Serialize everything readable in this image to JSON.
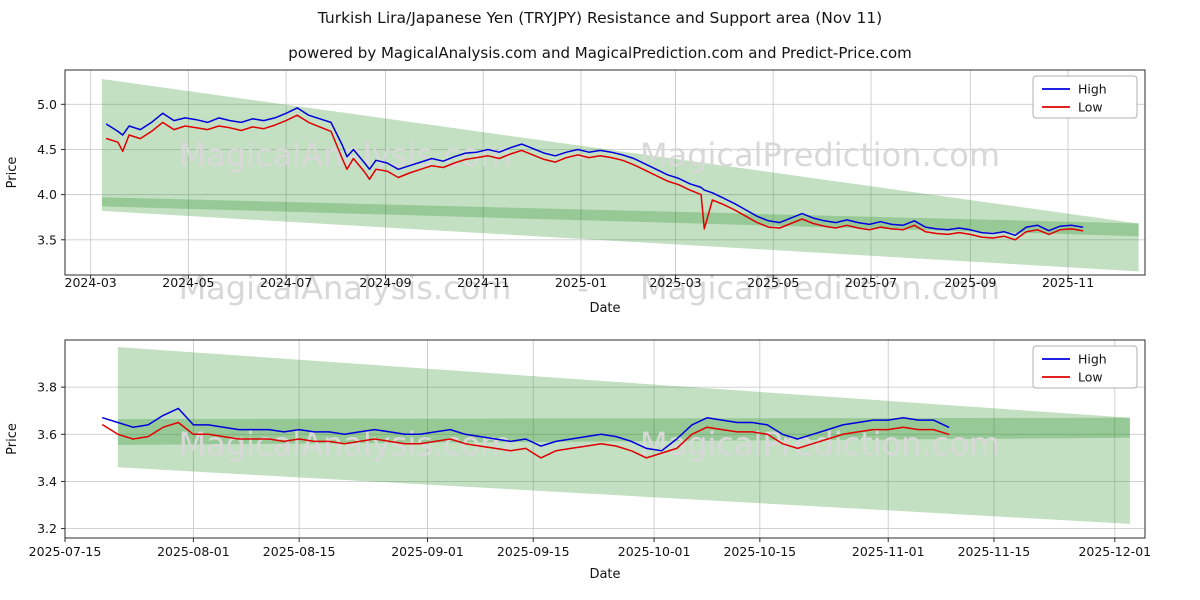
{
  "header": {
    "title": "Turkish Lira/Japanese Yen (TRYJPY) Resistance and Support area (Nov 11)",
    "subtitle": "powered by MagicalAnalysis.com and MagicalPrediction.com and Predict-Price.com"
  },
  "watermarks": {
    "left": "MagicalAnalysis.com",
    "separator": "-",
    "right": "MagicalPrediction.com"
  },
  "colors": {
    "high": "#0000dd",
    "low": "#e00000",
    "band": "#228B22",
    "grid": "#cccccc",
    "spine": "#2b2b2b",
    "text": "#141414",
    "watermark": "#d8d8d8"
  },
  "chart_data": [
    {
      "type": "line",
      "title": "",
      "xlabel": "Date",
      "ylabel": "Price",
      "legend_position": "upper right",
      "grid": true,
      "x_domain": [
        "2024-02-14",
        "2025-12-19"
      ],
      "y_domain": [
        3.11,
        5.38
      ],
      "x_ticks": [
        "2024-03",
        "2024-05",
        "2024-07",
        "2024-09",
        "2024-11",
        "2025-01",
        "2025-03",
        "2025-05",
        "2025-07",
        "2025-09",
        "2025-11"
      ],
      "y_ticks": [
        3.5,
        4.0,
        4.5,
        5.0
      ],
      "x": [
        "2024-03-11",
        "2024-03-18",
        "2024-03-21",
        "2024-03-25",
        "2024-04-01",
        "2024-04-08",
        "2024-04-15",
        "2024-04-22",
        "2024-04-29",
        "2024-05-06",
        "2024-05-13",
        "2024-05-20",
        "2024-05-27",
        "2024-06-03",
        "2024-06-10",
        "2024-06-17",
        "2024-06-24",
        "2024-07-01",
        "2024-07-08",
        "2024-07-15",
        "2024-07-22",
        "2024-07-29",
        "2024-08-05",
        "2024-08-08",
        "2024-08-12",
        "2024-08-19",
        "2024-08-22",
        "2024-08-26",
        "2024-09-02",
        "2024-09-09",
        "2024-09-16",
        "2024-09-23",
        "2024-09-30",
        "2024-10-07",
        "2024-10-14",
        "2024-10-21",
        "2024-10-28",
        "2024-11-04",
        "2024-11-11",
        "2024-11-18",
        "2024-11-25",
        "2024-12-02",
        "2024-12-09",
        "2024-12-16",
        "2024-12-23",
        "2024-12-30",
        "2025-01-06",
        "2025-01-13",
        "2025-01-20",
        "2025-01-27",
        "2025-02-03",
        "2025-02-10",
        "2025-02-17",
        "2025-02-24",
        "2025-03-03",
        "2025-03-10",
        "2025-03-17",
        "2025-03-19",
        "2025-03-24",
        "2025-03-31",
        "2025-04-07",
        "2025-04-14",
        "2025-04-21",
        "2025-04-28",
        "2025-05-05",
        "2025-05-12",
        "2025-05-19",
        "2025-05-26",
        "2025-06-02",
        "2025-06-09",
        "2025-06-16",
        "2025-06-23",
        "2025-06-30",
        "2025-07-07",
        "2025-07-14",
        "2025-07-21",
        "2025-07-28",
        "2025-08-04",
        "2025-08-11",
        "2025-08-18",
        "2025-08-25",
        "2025-09-01",
        "2025-09-08",
        "2025-09-15",
        "2025-09-22",
        "2025-09-29",
        "2025-10-06",
        "2025-10-13",
        "2025-10-20",
        "2025-10-27",
        "2025-11-03",
        "2025-11-10"
      ],
      "series": [
        {
          "name": "High",
          "color_key": "high",
          "values": [
            4.78,
            4.7,
            4.66,
            4.76,
            4.72,
            4.8,
            4.9,
            4.82,
            4.85,
            4.83,
            4.8,
            4.85,
            4.82,
            4.8,
            4.84,
            4.82,
            4.85,
            4.9,
            4.96,
            4.88,
            4.84,
            4.8,
            4.55,
            4.42,
            4.5,
            4.35,
            4.28,
            4.38,
            4.35,
            4.28,
            4.32,
            4.36,
            4.4,
            4.37,
            4.42,
            4.46,
            4.47,
            4.5,
            4.47,
            4.52,
            4.56,
            4.51,
            4.46,
            4.43,
            4.47,
            4.5,
            4.47,
            4.49,
            4.47,
            4.44,
            4.4,
            4.34,
            4.28,
            4.22,
            4.18,
            4.12,
            4.08,
            4.05,
            4.02,
            3.96,
            3.9,
            3.83,
            3.76,
            3.71,
            3.69,
            3.74,
            3.79,
            3.74,
            3.71,
            3.69,
            3.72,
            3.69,
            3.67,
            3.7,
            3.67,
            3.66,
            3.71,
            3.64,
            3.62,
            3.61,
            3.63,
            3.61,
            3.58,
            3.57,
            3.59,
            3.55,
            3.64,
            3.66,
            3.6,
            3.65,
            3.66,
            3.64
          ]
        },
        {
          "name": "Low",
          "color_key": "low",
          "values": [
            4.62,
            4.58,
            4.48,
            4.66,
            4.62,
            4.7,
            4.8,
            4.72,
            4.76,
            4.74,
            4.72,
            4.76,
            4.74,
            4.71,
            4.75,
            4.73,
            4.77,
            4.82,
            4.88,
            4.8,
            4.75,
            4.7,
            4.4,
            4.28,
            4.4,
            4.25,
            4.17,
            4.28,
            4.26,
            4.19,
            4.24,
            4.28,
            4.32,
            4.3,
            4.35,
            4.39,
            4.41,
            4.43,
            4.4,
            4.45,
            4.49,
            4.44,
            4.39,
            4.36,
            4.41,
            4.44,
            4.41,
            4.43,
            4.41,
            4.38,
            4.33,
            4.27,
            4.21,
            4.15,
            4.11,
            4.05,
            4.0,
            3.62,
            3.94,
            3.89,
            3.83,
            3.76,
            3.69,
            3.64,
            3.63,
            3.68,
            3.73,
            3.68,
            3.65,
            3.63,
            3.66,
            3.63,
            3.61,
            3.64,
            3.62,
            3.61,
            3.66,
            3.59,
            3.57,
            3.56,
            3.58,
            3.56,
            3.53,
            3.52,
            3.54,
            3.5,
            3.59,
            3.61,
            3.56,
            3.61,
            3.62,
            3.6
          ]
        }
      ],
      "bands": [
        {
          "name": "resistance-area",
          "points": [
            [
              "2024-03-08",
              5.28
            ],
            [
              "2025-12-15",
              3.68
            ],
            [
              "2025-12-15",
              3.54
            ],
            [
              "2024-03-08",
              3.87
            ]
          ]
        },
        {
          "name": "support-area",
          "points": [
            [
              "2024-03-08",
              3.97
            ],
            [
              "2025-12-15",
              3.68
            ],
            [
              "2025-12-15",
              3.15
            ],
            [
              "2024-03-08",
              3.82
            ]
          ]
        }
      ]
    },
    {
      "type": "line",
      "title": "",
      "xlabel": "Date",
      "ylabel": "Price",
      "legend_position": "upper right",
      "grid": true,
      "x_domain": [
        "2025-07-15",
        "2025-12-05"
      ],
      "y_domain": [
        3.16,
        4.0
      ],
      "x_ticks": [
        "2025-07-15",
        "2025-08-01",
        "2025-08-15",
        "2025-09-01",
        "2025-09-15",
        "2025-10-01",
        "2025-10-15",
        "2025-11-01",
        "2025-11-15",
        "2025-12-01"
      ],
      "y_ticks": [
        3.2,
        3.4,
        3.6,
        3.8
      ],
      "x": [
        "2025-07-20",
        "2025-07-22",
        "2025-07-24",
        "2025-07-26",
        "2025-07-28",
        "2025-07-30",
        "2025-08-01",
        "2025-08-03",
        "2025-08-05",
        "2025-08-07",
        "2025-08-09",
        "2025-08-11",
        "2025-08-13",
        "2025-08-15",
        "2025-08-17",
        "2025-08-19",
        "2025-08-21",
        "2025-08-23",
        "2025-08-25",
        "2025-08-27",
        "2025-08-29",
        "2025-08-31",
        "2025-09-02",
        "2025-09-04",
        "2025-09-06",
        "2025-09-08",
        "2025-09-10",
        "2025-09-12",
        "2025-09-14",
        "2025-09-16",
        "2025-09-18",
        "2025-09-20",
        "2025-09-22",
        "2025-09-24",
        "2025-09-26",
        "2025-09-28",
        "2025-09-30",
        "2025-10-02",
        "2025-10-04",
        "2025-10-06",
        "2025-10-08",
        "2025-10-10",
        "2025-10-12",
        "2025-10-14",
        "2025-10-16",
        "2025-10-18",
        "2025-10-20",
        "2025-10-22",
        "2025-10-24",
        "2025-10-26",
        "2025-10-28",
        "2025-10-30",
        "2025-11-01",
        "2025-11-03",
        "2025-11-05",
        "2025-11-07",
        "2025-11-09"
      ],
      "series": [
        {
          "name": "High",
          "color_key": "high",
          "values": [
            3.67,
            3.65,
            3.63,
            3.64,
            3.68,
            3.71,
            3.64,
            3.64,
            3.63,
            3.62,
            3.62,
            3.62,
            3.61,
            3.62,
            3.61,
            3.61,
            3.6,
            3.61,
            3.62,
            3.61,
            3.6,
            3.6,
            3.61,
            3.62,
            3.6,
            3.59,
            3.58,
            3.57,
            3.58,
            3.55,
            3.57,
            3.58,
            3.59,
            3.6,
            3.59,
            3.57,
            3.54,
            3.53,
            3.58,
            3.64,
            3.67,
            3.66,
            3.65,
            3.65,
            3.64,
            3.6,
            3.58,
            3.6,
            3.62,
            3.64,
            3.65,
            3.66,
            3.66,
            3.67,
            3.66,
            3.66,
            3.63
          ]
        },
        {
          "name": "Low",
          "color_key": "low",
          "values": [
            3.64,
            3.6,
            3.58,
            3.59,
            3.63,
            3.65,
            3.6,
            3.6,
            3.59,
            3.58,
            3.58,
            3.58,
            3.57,
            3.58,
            3.57,
            3.57,
            3.56,
            3.57,
            3.58,
            3.57,
            3.56,
            3.56,
            3.57,
            3.58,
            3.56,
            3.55,
            3.54,
            3.53,
            3.54,
            3.5,
            3.53,
            3.54,
            3.55,
            3.56,
            3.55,
            3.53,
            3.5,
            3.52,
            3.54,
            3.6,
            3.63,
            3.62,
            3.61,
            3.61,
            3.6,
            3.56,
            3.54,
            3.56,
            3.58,
            3.6,
            3.61,
            3.62,
            3.62,
            3.63,
            3.62,
            3.62,
            3.6
          ]
        }
      ],
      "bands": [
        {
          "name": "resistance-area",
          "points": [
            [
              "2025-07-22",
              3.97
            ],
            [
              "2025-12-03",
              3.67
            ],
            [
              "2025-12-03",
              3.22
            ],
            [
              "2025-07-22",
              3.46
            ]
          ]
        },
        {
          "name": "support-area",
          "points": [
            [
              "2025-07-22",
              3.665
            ],
            [
              "2025-12-03",
              3.67
            ],
            [
              "2025-12-03",
              3.585
            ],
            [
              "2025-07-22",
              3.555
            ]
          ]
        }
      ]
    }
  ]
}
